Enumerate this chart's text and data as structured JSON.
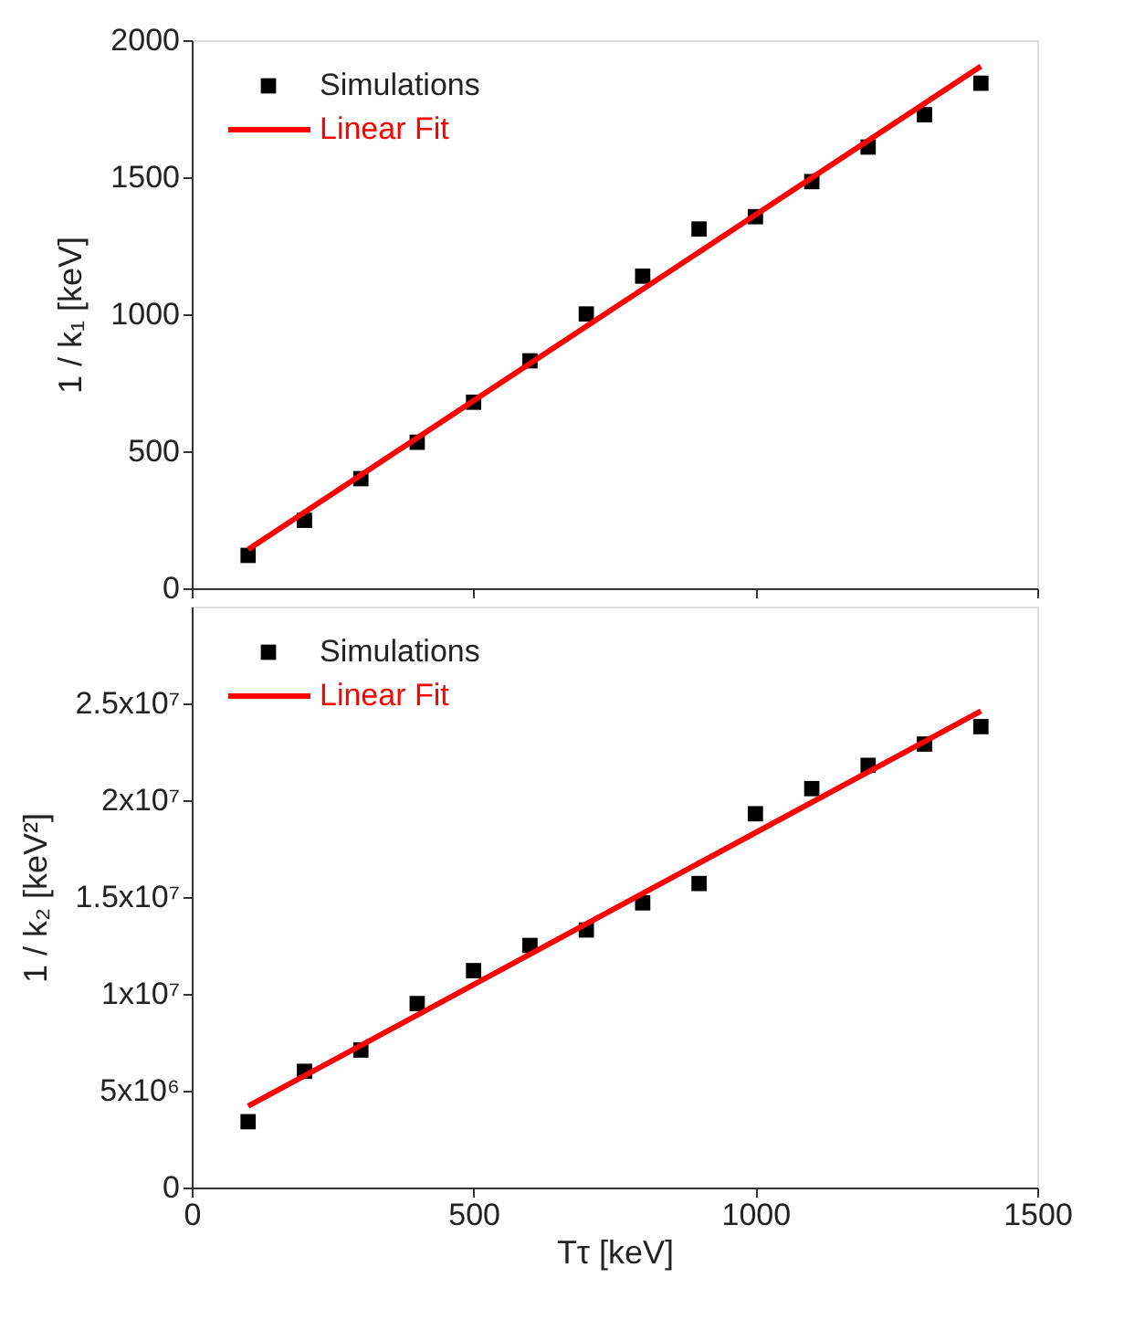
{
  "chart_data": [
    {
      "type": "scatter",
      "ylabel": "1 / k₁ [keV]",
      "xlim": [
        0,
        1500
      ],
      "xticks": [
        0,
        500,
        1000,
        1500
      ],
      "ylim": [
        0,
        2000
      ],
      "yticks": [
        0,
        500,
        1000,
        1500,
        2000
      ],
      "tick_labels": "y",
      "legend": "top left",
      "grid": false,
      "series": [
        {
          "name": "Simulations",
          "marker": "square",
          "color": "#000000",
          "x": [
            100,
            200,
            300,
            400,
            500,
            600,
            700,
            800,
            900,
            1000,
            1100,
            1200,
            1300,
            1400
          ],
          "values": [
            120,
            248,
            400,
            533,
            679,
            830,
            1001,
            1139,
            1311,
            1356,
            1484,
            1610,
            1728,
            1843
          ]
        },
        {
          "name": "Linear Fit",
          "type": "line",
          "line_style": "solid",
          "color": "#ff0000",
          "x": [
            100,
            1400
          ],
          "values": [
            142,
            1905
          ]
        }
      ]
    },
    {
      "type": "scatter",
      "xlabel": "Tτ [keV]",
      "ylabel": "1 / k₂ [keV²]",
      "xlim": [
        0,
        1500
      ],
      "xticks": [
        0,
        500,
        1000,
        1500
      ],
      "ylim": [
        0,
        30000000
      ],
      "yticks": [
        0,
        {
          "value": 5000000,
          "label": "5x10⁶"
        },
        {
          "value": 10000000,
          "label": "1x10⁷"
        },
        {
          "value": 15000000,
          "label": "1.5x10⁷"
        },
        {
          "value": 20000000,
          "label": "2x10⁷"
        },
        {
          "value": 25000000,
          "label": "2.5x10⁷"
        }
      ],
      "legend": "top left",
      "grid": false,
      "series": [
        {
          "name": "Simulations",
          "marker": "square",
          "color": "#000000",
          "x": [
            100,
            200,
            300,
            400,
            500,
            600,
            700,
            800,
            900,
            1000,
            1100,
            1200,
            1300,
            1400
          ],
          "values": [
            3400000,
            6000000,
            7100000,
            9500000,
            11200000,
            12500000,
            13300000,
            14700000,
            15700000,
            19300000,
            20600000,
            21800000,
            22900000,
            23800000
          ]
        },
        {
          "name": "Linear Fit",
          "type": "line",
          "line_style": "solid",
          "color": "#ff0000",
          "x": [
            100,
            1400
          ],
          "values": [
            4200000,
            24600000
          ]
        }
      ]
    }
  ]
}
